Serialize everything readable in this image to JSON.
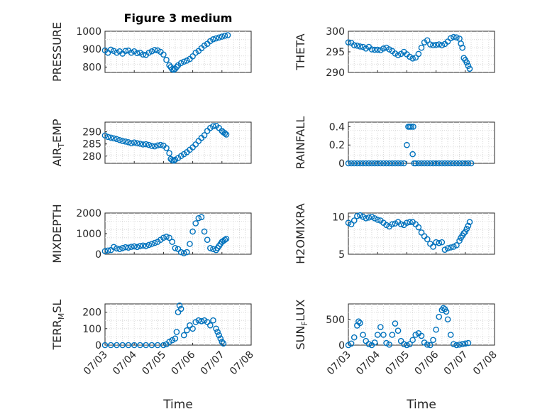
{
  "figure_title": "Figure 3 medium",
  "xlabel": "Time",
  "colors": {
    "marker": "#0072bd",
    "axis": "#262626",
    "grid": "#d9d9d9"
  },
  "chart_data": [
    {
      "id": "pressure",
      "type": "scatter",
      "title": "Figure 3 medium",
      "ylabel": "PRESSURE",
      "ylim": [
        770,
        1000
      ],
      "yticks": [
        800,
        900,
        1000
      ],
      "xlim": [
        0,
        5
      ],
      "xticks": [
        "07/03",
        "07/04",
        "07/05",
        "07/06",
        "07/07",
        "07/08"
      ],
      "xticklabels_shown": false,
      "grid": true,
      "x": [
        0.0,
        0.1,
        0.2,
        0.3,
        0.4,
        0.5,
        0.6,
        0.7,
        0.8,
        0.9,
        1.0,
        1.1,
        1.2,
        1.3,
        1.4,
        1.5,
        1.6,
        1.7,
        1.8,
        1.9,
        2.0,
        2.1,
        2.2,
        2.25,
        2.3,
        2.35,
        2.4,
        2.45,
        2.5,
        2.6,
        2.7,
        2.8,
        2.9,
        3.0,
        3.1,
        3.2,
        3.3,
        3.4,
        3.5,
        3.6,
        3.7,
        3.8,
        3.9,
        4.0,
        4.1,
        4.2
      ],
      "y": [
        893,
        880,
        897,
        890,
        880,
        888,
        875,
        890,
        892,
        880,
        888,
        878,
        880,
        870,
        868,
        880,
        888,
        895,
        893,
        885,
        870,
        840,
        810,
        800,
        788,
        785,
        790,
        800,
        810,
        822,
        830,
        836,
        845,
        860,
        880,
        890,
        905,
        920,
        930,
        945,
        955,
        960,
        965,
        970,
        975,
        978
      ]
    },
    {
      "id": "theta",
      "type": "scatter",
      "ylabel": "THETA",
      "ylim": [
        290,
        300
      ],
      "yticks": [
        290,
        295,
        300
      ],
      "xlim": [
        0,
        5
      ],
      "xticks": [
        "07/03",
        "07/04",
        "07/05",
        "07/06",
        "07/07",
        "07/08"
      ],
      "xticklabels_shown": false,
      "grid": true,
      "x": [
        0.0,
        0.1,
        0.2,
        0.3,
        0.4,
        0.5,
        0.6,
        0.7,
        0.8,
        0.9,
        1.0,
        1.1,
        1.2,
        1.3,
        1.4,
        1.5,
        1.6,
        1.7,
        1.8,
        1.9,
        2.0,
        2.1,
        2.2,
        2.3,
        2.4,
        2.5,
        2.6,
        2.7,
        2.8,
        2.9,
        3.0,
        3.1,
        3.2,
        3.3,
        3.4,
        3.5,
        3.6,
        3.7,
        3.8,
        3.85,
        3.9,
        3.95,
        4.0,
        4.05,
        4.1,
        4.15
      ],
      "y": [
        297.3,
        297.2,
        296.6,
        296.5,
        296.3,
        296.2,
        295.8,
        296.2,
        295.6,
        295.5,
        295.5,
        295.4,
        295.8,
        296.0,
        295.6,
        295.2,
        294.6,
        294.2,
        294.5,
        295.0,
        294.4,
        293.8,
        293.4,
        293.6,
        294.5,
        296.0,
        297.3,
        297.8,
        296.8,
        296.6,
        296.7,
        296.8,
        296.6,
        296.9,
        297.5,
        298.3,
        298.6,
        298.5,
        298.2,
        297.0,
        296.0,
        293.5,
        293.0,
        292.4,
        291.6,
        290.9
      ]
    },
    {
      "id": "air_temp",
      "type": "scatter",
      "ylabel": "AIR_TEMP",
      "ylim": [
        277,
        294
      ],
      "yticks": [
        280,
        285,
        290
      ],
      "xlim": [
        0,
        5
      ],
      "xticks": [
        "07/03",
        "07/04",
        "07/05",
        "07/06",
        "07/07",
        "07/08"
      ],
      "xticklabels_shown": false,
      "grid": true,
      "x": [
        0.0,
        0.1,
        0.2,
        0.3,
        0.4,
        0.5,
        0.6,
        0.7,
        0.8,
        0.9,
        1.0,
        1.1,
        1.2,
        1.3,
        1.4,
        1.5,
        1.6,
        1.7,
        1.8,
        1.9,
        2.0,
        2.1,
        2.2,
        2.25,
        2.3,
        2.35,
        2.4,
        2.5,
        2.6,
        2.7,
        2.8,
        2.9,
        3.0,
        3.1,
        3.2,
        3.3,
        3.4,
        3.5,
        3.6,
        3.7,
        3.8,
        3.9,
        4.0,
        4.05,
        4.1,
        4.15
      ],
      "y": [
        288.5,
        287.9,
        287.6,
        287.3,
        287.0,
        286.6,
        286.2,
        286.0,
        285.7,
        285.3,
        285.6,
        285.3,
        285.1,
        284.8,
        284.9,
        284.6,
        284.2,
        284.0,
        284.4,
        284.6,
        284.3,
        283.3,
        281.2,
        278.8,
        278.3,
        278.1,
        278.5,
        279.2,
        280.0,
        280.8,
        281.6,
        282.6,
        283.6,
        284.8,
        286.2,
        287.5,
        288.6,
        290.4,
        291.6,
        292.3,
        292.5,
        291.6,
        290.4,
        289.8,
        289.4,
        288.9
      ]
    },
    {
      "id": "rainfall",
      "type": "scatter",
      "ylabel": "RAINFALL",
      "ylim": [
        0,
        0.45
      ],
      "yticks": [
        0,
        0.2,
        0.4
      ],
      "xlim": [
        0,
        5
      ],
      "xticks": [
        "07/03",
        "07/04",
        "07/05",
        "07/06",
        "07/07",
        "07/08"
      ],
      "xticklabels_shown": false,
      "grid": true,
      "x": [
        0.0,
        0.1,
        0.2,
        0.3,
        0.4,
        0.5,
        0.6,
        0.7,
        0.8,
        0.9,
        1.0,
        1.1,
        1.2,
        1.3,
        1.4,
        1.5,
        1.6,
        1.7,
        1.8,
        1.9,
        2.0,
        2.05,
        2.1,
        2.15,
        2.2,
        2.22,
        2.25,
        2.3,
        2.4,
        2.5,
        2.6,
        2.7,
        2.8,
        2.9,
        3.0,
        3.1,
        3.2,
        3.3,
        3.4,
        3.5,
        3.6,
        3.7,
        3.8,
        3.9,
        4.0,
        4.1,
        4.2
      ],
      "y": [
        0,
        0,
        0,
        0,
        0,
        0,
        0,
        0,
        0,
        0,
        0,
        0,
        0,
        0,
        0,
        0,
        0,
        0,
        0,
        0,
        0.2,
        0.4,
        0.4,
        0.4,
        0.1,
        0.4,
        0,
        0,
        0,
        0,
        0,
        0,
        0,
        0,
        0,
        0,
        0,
        0,
        0,
        0,
        0,
        0,
        0,
        0,
        0,
        0,
        0
      ]
    },
    {
      "id": "mixdepth",
      "type": "scatter",
      "ylabel": "MIXDEPTH",
      "ylim": [
        0,
        2000
      ],
      "yticks": [
        0,
        1000,
        2000
      ],
      "xlim": [
        0,
        5
      ],
      "xticks": [
        "07/03",
        "07/04",
        "07/05",
        "07/06",
        "07/07",
        "07/08"
      ],
      "xticklabels_shown": false,
      "grid": true,
      "x": [
        0.0,
        0.1,
        0.2,
        0.3,
        0.4,
        0.5,
        0.6,
        0.7,
        0.8,
        0.9,
        1.0,
        1.1,
        1.2,
        1.3,
        1.4,
        1.5,
        1.6,
        1.7,
        1.8,
        1.9,
        2.0,
        2.1,
        2.2,
        2.3,
        2.4,
        2.5,
        2.6,
        2.7,
        2.8,
        2.9,
        3.0,
        3.1,
        3.2,
        3.3,
        3.4,
        3.5,
        3.6,
        3.7,
        3.8,
        3.85,
        3.9,
        3.95,
        4.0,
        4.05,
        4.1,
        4.15
      ],
      "y": [
        150,
        180,
        200,
        350,
        280,
        250,
        300,
        340,
        320,
        360,
        380,
        350,
        400,
        420,
        400,
        450,
        500,
        550,
        600,
        700,
        800,
        850,
        800,
        600,
        300,
        250,
        100,
        50,
        100,
        500,
        1100,
        1500,
        1750,
        1800,
        1100,
        700,
        300,
        250,
        200,
        300,
        400,
        500,
        600,
        650,
        700,
        750
      ]
    },
    {
      "id": "h2omixra",
      "type": "scatter",
      "ylabel": "H2OMIXRA",
      "ylim": [
        5,
        10.5
      ],
      "yticks": [
        5,
        10
      ],
      "xlim": [
        0,
        5
      ],
      "xticks": [
        "07/03",
        "07/04",
        "07/05",
        "07/06",
        "07/07",
        "07/08"
      ],
      "xticklabels_shown": false,
      "grid": true,
      "x": [
        0.0,
        0.1,
        0.2,
        0.3,
        0.4,
        0.5,
        0.6,
        0.7,
        0.8,
        0.9,
        1.0,
        1.1,
        1.2,
        1.3,
        1.4,
        1.5,
        1.6,
        1.7,
        1.8,
        1.9,
        2.0,
        2.1,
        2.2,
        2.3,
        2.4,
        2.5,
        2.6,
        2.7,
        2.8,
        2.9,
        3.0,
        3.1,
        3.2,
        3.3,
        3.4,
        3.5,
        3.6,
        3.7,
        3.8,
        3.85,
        3.9,
        3.95,
        4.0,
        4.05,
        4.1,
        4.15
      ],
      "y": [
        9.2,
        9.0,
        9.5,
        10.1,
        10.2,
        10.0,
        9.8,
        9.9,
        10.0,
        9.8,
        9.6,
        9.5,
        9.2,
        8.9,
        8.7,
        9.0,
        9.1,
        9.3,
        9.0,
        8.9,
        9.2,
        9.3,
        9.3,
        9.0,
        8.6,
        7.9,
        7.4,
        7.0,
        6.4,
        6.0,
        6.6,
        6.5,
        6.6,
        5.6,
        5.8,
        5.9,
        6.0,
        6.2,
        6.8,
        7.2,
        7.5,
        7.8,
        8.0,
        8.4,
        8.8,
        9.3
      ]
    },
    {
      "id": "terr_msl",
      "type": "scatter",
      "ylabel": "TERR_MSL",
      "ylim": [
        0,
        250
      ],
      "yticks": [
        0,
        100,
        200
      ],
      "xlim": [
        0,
        5
      ],
      "xticks": [
        "07/03",
        "07/04",
        "07/05",
        "07/06",
        "07/07",
        "07/08"
      ],
      "xticklabels_shown": true,
      "grid": true,
      "x": [
        0.0,
        0.2,
        0.4,
        0.6,
        0.8,
        1.0,
        1.2,
        1.4,
        1.6,
        1.8,
        2.0,
        2.1,
        2.2,
        2.3,
        2.4,
        2.45,
        2.5,
        2.55,
        2.6,
        2.7,
        2.8,
        2.9,
        3.0,
        3.1,
        3.2,
        3.3,
        3.4,
        3.5,
        3.6,
        3.7,
        3.8,
        3.85,
        3.9,
        3.95,
        4.0,
        4.05
      ],
      "y": [
        0,
        0,
        0,
        0,
        0,
        0,
        0,
        0,
        0,
        0,
        0,
        5,
        20,
        30,
        40,
        80,
        200,
        240,
        220,
        60,
        90,
        120,
        100,
        140,
        150,
        145,
        150,
        140,
        120,
        150,
        100,
        80,
        60,
        40,
        20,
        10
      ]
    },
    {
      "id": "sun_flux",
      "type": "scatter",
      "ylabel": "SUN_FLUX",
      "ylim": [
        0,
        800
      ],
      "yticks": [
        0,
        500
      ],
      "xlim": [
        0,
        5
      ],
      "xticks": [
        "07/03",
        "07/04",
        "07/05",
        "07/06",
        "07/07",
        "07/08"
      ],
      "xticklabels_shown": true,
      "grid": true,
      "x": [
        0.0,
        0.1,
        0.2,
        0.3,
        0.35,
        0.4,
        0.5,
        0.6,
        0.7,
        0.8,
        0.9,
        1.0,
        1.1,
        1.2,
        1.3,
        1.4,
        1.5,
        1.6,
        1.7,
        1.8,
        1.9,
        2.0,
        2.1,
        2.2,
        2.3,
        2.4,
        2.5,
        2.6,
        2.7,
        2.8,
        2.9,
        3.0,
        3.1,
        3.2,
        3.25,
        3.3,
        3.35,
        3.4,
        3.5,
        3.6,
        3.7,
        3.8,
        3.9,
        4.0,
        4.1
      ],
      "y": [
        0,
        30,
        150,
        380,
        460,
        430,
        200,
        80,
        20,
        0,
        50,
        200,
        350,
        200,
        40,
        10,
        200,
        420,
        280,
        80,
        20,
        0,
        20,
        100,
        200,
        230,
        180,
        50,
        10,
        0,
        100,
        300,
        550,
        680,
        720,
        700,
        650,
        500,
        200,
        20,
        0,
        10,
        20,
        30,
        40
      ]
    }
  ]
}
